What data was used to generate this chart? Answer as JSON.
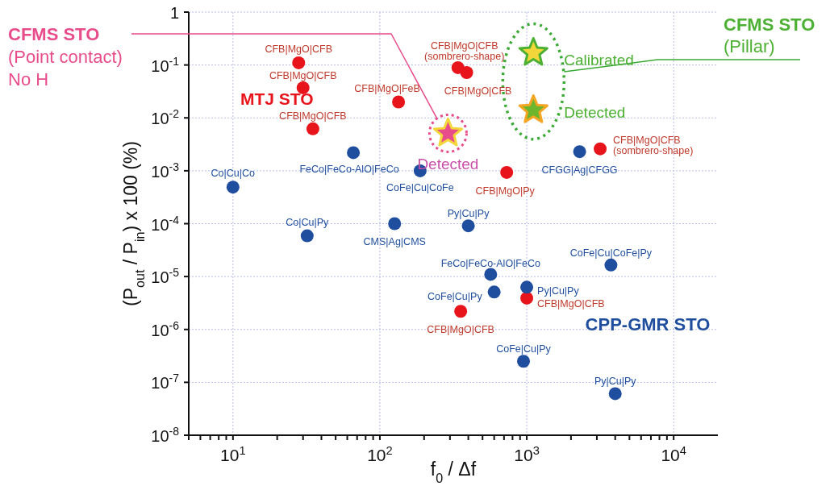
{
  "chart_data": {
    "type": "scatter",
    "xlabel": "f$_{0}$ / Δf",
    "ylabel": "(P$_{out}$ / P$_{in}$) x 100 (%)",
    "log": "xy",
    "grid": true,
    "xlim": [
      5,
      20000
    ],
    "ylim": [
      1e-08,
      1
    ],
    "xticks": [
      {
        "value": 5,
        "label": null
      },
      {
        "value": 6,
        "label": null
      },
      {
        "value": 7,
        "label": null
      },
      {
        "value": 8,
        "label": null
      },
      {
        "value": 9,
        "label": null
      },
      {
        "value": 10,
        "label": "10$^{1}$"
      },
      {
        "value": 20,
        "label": null
      },
      {
        "value": 30,
        "label": null
      },
      {
        "value": 40,
        "label": null
      },
      {
        "value": 50,
        "label": null
      },
      {
        "value": 60,
        "label": null
      },
      {
        "value": 70,
        "label": null
      },
      {
        "value": 80,
        "label": null
      },
      {
        "value": 90,
        "label": null
      },
      {
        "value": 100,
        "label": "10$^{2}$"
      },
      {
        "value": 200,
        "label": null
      },
      {
        "value": 300,
        "label": null
      },
      {
        "value": 400,
        "label": null
      },
      {
        "value": 500,
        "label": null
      },
      {
        "value": 600,
        "label": null
      },
      {
        "value": 700,
        "label": null
      },
      {
        "value": 800,
        "label": null
      },
      {
        "value": 900,
        "label": null
      },
      {
        "value": 1000,
        "label": "10$^{3}$"
      },
      {
        "value": 2000,
        "label": null
      },
      {
        "value": 3000,
        "label": null
      },
      {
        "value": 4000,
        "label": null
      },
      {
        "value": 5000,
        "label": null
      },
      {
        "value": 6000,
        "label": null
      },
      {
        "value": 7000,
        "label": null
      },
      {
        "value": 8000,
        "label": null
      },
      {
        "value": 9000,
        "label": null
      },
      {
        "value": 10000,
        "label": "10$^{4}$"
      }
    ],
    "yticks": [
      {
        "value": 1e-08,
        "label": "10$^{-8}$"
      },
      {
        "value": 1e-07,
        "label": "10$^{-7}$"
      },
      {
        "value": 1e-06,
        "label": "10$^{-6}$"
      },
      {
        "value": 1e-05,
        "label": "10$^{-5}$"
      },
      {
        "value": 0.0001,
        "label": "10$^{-4}$"
      },
      {
        "value": 0.001,
        "label": "10$^{-3}$"
      },
      {
        "value": 0.01,
        "label": "10$^{-2}$"
      },
      {
        "value": 0.1,
        "label": "10$^{-1}$"
      },
      1
    ],
    "series": [
      {
        "name": "MTJ STO",
        "color": "#e8141c",
        "marker": "circle",
        "x": [
          28,
          30,
          35,
          134,
          340,
          390,
          730,
          3160,
          355,
          1000
        ],
        "values": [
          0.11,
          0.037,
          0.0062,
          0.02,
          0.089,
          0.072,
          0.00093,
          0.0026,
          2.2e-06,
          3.9e-06
        ],
        "value_labels": [
          "CFB|MgO|CFB",
          "CFB|MgO|CFB",
          "CFB|MgO|CFB",
          "CFB|MgO|FeB",
          "CFB|MgO|CFB\n(sombrero-shape)",
          "CFB|MgO|CFB",
          "CFB|MgO|Py",
          "CFB|MgO|CFB\n(sombrero-shape)",
          "CFB|MgO|CFB",
          "CFB|MgO|CFB"
        ]
      },
      {
        "name": "CPP-GMR STO",
        "color": "#1f4e9e",
        "marker": "circle",
        "x": [
          10,
          32,
          66,
          126,
          188,
          400,
          568,
          600,
          1000,
          950,
          2290,
          3740,
          4000
        ],
        "values": [
          0.00049,
          5.9e-05,
          0.0022,
          0.0001,
          0.001,
          9.1e-05,
          1.1e-05,
          5.1e-06,
          6.3e-06,
          2.5e-07,
          0.0023,
          1.65e-05,
          6.1e-08
        ],
        "value_labels": [
          "Co|Cu|Co",
          "Co|Cu|Py",
          "FeCo|FeCo-AlO|FeCo",
          "CMS|Ag|CMS",
          "CoFe|Cu|CoFe",
          "Py|Cu|Py",
          "FeCo|FeCo-AlO|FeCo",
          "CoFe|Cu|Py",
          "Py|Cu|Py",
          "CoFe|Cu|Py",
          "CFGG|Ag|CFGG",
          "CoFe|Cu|CoFe|Py",
          "Py|Cu|Py"
        ]
      },
      {
        "name": "CFMS STO\n(Point contact)\nNo H",
        "color": "#e84c8b",
        "marker": "star",
        "x": [
          291
        ],
        "values": [
          0.0051
        ],
        "value_labels": [
          "Detected"
        ]
      },
      {
        "name": "CFMS STO\n(Pillar)",
        "color": "#4cb032",
        "colors": [
          "#f3d63a",
          "#6cb52d"
        ],
        "marker": "star",
        "x": [
          1110,
          1110
        ],
        "values": [
          0.17,
          0.014
        ],
        "value_labels": [
          "Calibrated",
          "Detected"
        ]
      }
    ]
  }
}
